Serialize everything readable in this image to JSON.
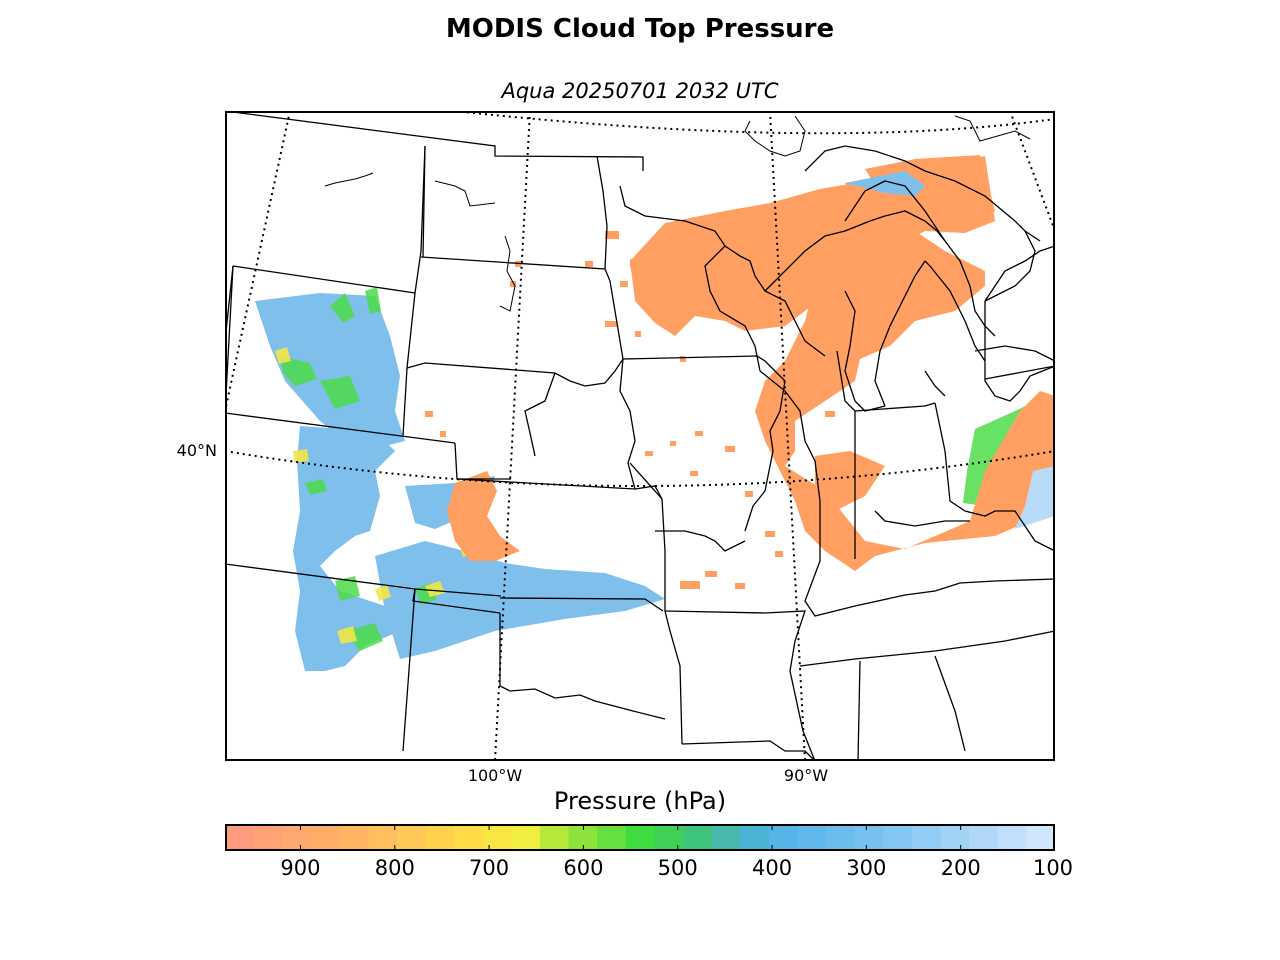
{
  "title": "MODIS Cloud Top Pressure",
  "subtitle": "Aqua 20250701 2032 UTC",
  "map": {
    "lat_labels": [
      {
        "text": "40°N"
      }
    ],
    "lon_labels": [
      {
        "text": "100°W"
      },
      {
        "text": "90°W"
      }
    ]
  },
  "colorbar": {
    "label": "Pressure (hPa)",
    "range": [
      980,
      100
    ],
    "ticks": [
      "900",
      "800",
      "700",
      "600",
      "500",
      "400",
      "300",
      "200",
      "100"
    ],
    "colors": [
      "#ff9c80",
      "#ffa377",
      "#ffa96f",
      "#ffae68",
      "#ffb563",
      "#ffbf5c",
      "#ffc857",
      "#ffd24e",
      "#ffdc48",
      "#fae643",
      "#f0ef40",
      "#b7e83c",
      "#8de33c",
      "#66e03e",
      "#3fdc3f",
      "#3fd055",
      "#3fc47e",
      "#46b9aa",
      "#4ab3d6",
      "#57b4e8",
      "#62b8ec",
      "#6dbcee",
      "#78c0f0",
      "#84c6f2",
      "#92ccf4",
      "#a2d2f6",
      "#b1d8f8",
      "#c0dffa",
      "#cfe6fc"
    ]
  },
  "layers": {
    "cloud_colors": {
      "low": "#ffa060",
      "mid": "#f4e84a",
      "green": "#45dd45",
      "high": "#79bcec",
      "very_high": "#b8dbf8"
    }
  }
}
